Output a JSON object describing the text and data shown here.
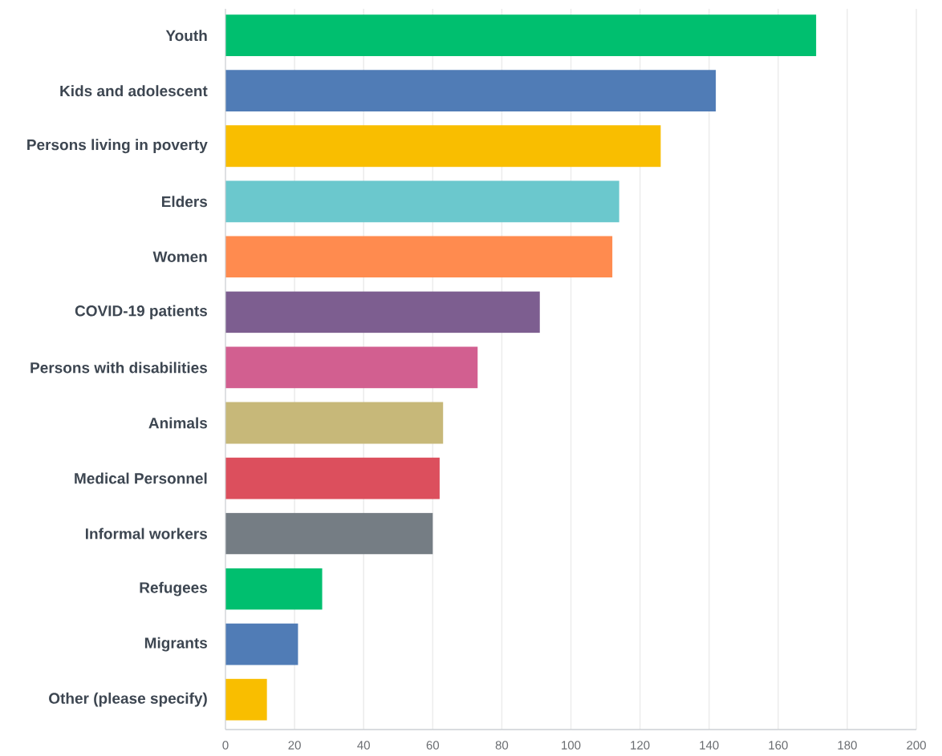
{
  "chart_data": {
    "type": "bar",
    "orientation": "horizontal",
    "categories": [
      "Youth",
      "Kids and adolescent",
      "Persons living in poverty",
      "Elders",
      "Women",
      "COVID-19 patients",
      "Persons with disabilities",
      "Animals",
      "Medical Personnel",
      "Informal workers",
      "Refugees",
      "Migrants",
      "Other (please specify)"
    ],
    "values": [
      171,
      142,
      126,
      114,
      112,
      91,
      73,
      63,
      62,
      60,
      28,
      21,
      12
    ],
    "colors": [
      "#00bf6f",
      "#507cb6",
      "#f9be00",
      "#6bc8cd",
      "#ff8b4f",
      "#7d5e90",
      "#d25f90",
      "#c7b879",
      "#dc4f5d",
      "#757d84",
      "#00bf6f",
      "#507cb6",
      "#f9be00"
    ],
    "xlim": [
      0,
      200
    ],
    "xticks": [
      0,
      20,
      40,
      60,
      80,
      100,
      120,
      140,
      160,
      180,
      200
    ],
    "grid": "x"
  }
}
